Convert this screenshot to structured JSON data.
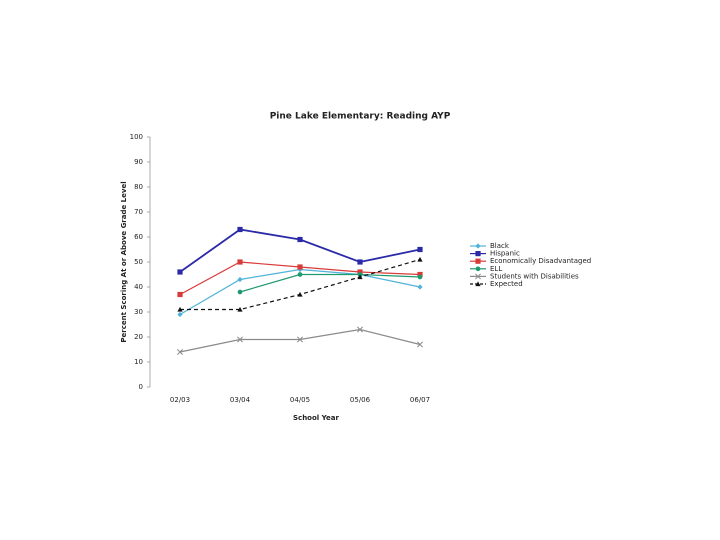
{
  "chart_data": {
    "type": "line",
    "title": "Pine Lake Elementary:  Reading AYP",
    "x_label": "School Year",
    "y_label": "Percent Scoring At or Above Grade Level",
    "categories": [
      "02/03",
      "03/04",
      "04/05",
      "05/06",
      "06/07"
    ],
    "ylim": [
      0,
      100
    ],
    "yticks": [
      0,
      10,
      20,
      30,
      40,
      50,
      60,
      70,
      80,
      90,
      100
    ],
    "legend": "right",
    "grid": false,
    "series": [
      {
        "name": "Black",
        "color": "#4fb3d9",
        "marker": "diamond",
        "line_style": "solid",
        "values": [
          29,
          43,
          47,
          45,
          40
        ]
      },
      {
        "name": "Hispanic",
        "color": "#2a2aa8",
        "marker": "square",
        "line_style": "solid",
        "values": [
          46,
          63,
          59,
          50,
          55
        ]
      },
      {
        "name": "Economically Disadvantaged",
        "color": "#d93a3a",
        "marker": "square",
        "line_style": "solid",
        "values": [
          37,
          50,
          48,
          46,
          45
        ]
      },
      {
        "name": "ELL",
        "color": "#1f9a6f",
        "marker": "circle",
        "line_style": "solid",
        "values": [
          null,
          38,
          45,
          45,
          44
        ]
      },
      {
        "name": "Students with Disabilities",
        "color": "#8a8a8a",
        "marker": "x",
        "line_style": "solid",
        "values": [
          14,
          19,
          19,
          23,
          17
        ]
      },
      {
        "name": "Expected",
        "color": "#111111",
        "marker": "triangle",
        "line_style": "dashed",
        "values": [
          31,
          31,
          37,
          44,
          51
        ]
      }
    ]
  }
}
